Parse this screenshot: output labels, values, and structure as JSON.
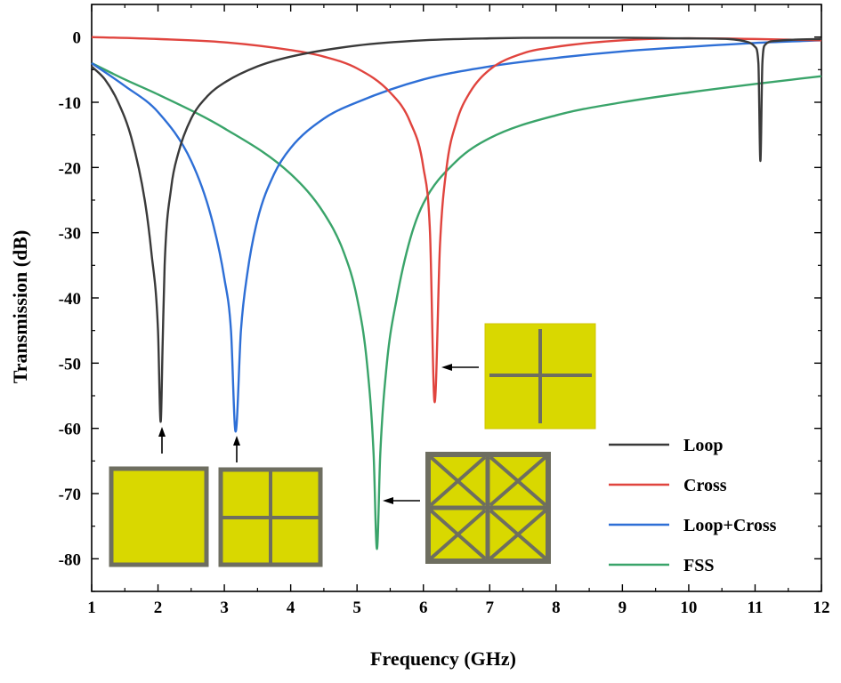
{
  "chart_data": {
    "type": "line",
    "title": "",
    "xlabel": "Frequency (GHz)",
    "ylabel": "Transmission (dB)",
    "xlim": [
      1,
      12
    ],
    "ylim": [
      -85,
      5
    ],
    "xticks": [
      "1",
      "2",
      "3",
      "4",
      "5",
      "6",
      "7",
      "8",
      "9",
      "10",
      "11",
      "12"
    ],
    "yticks": [
      "0",
      "-10",
      "-20",
      "-30",
      "-40",
      "-50",
      "-60",
      "-70",
      "-80"
    ],
    "grid": false,
    "legend_position": "bottom-right",
    "series": [
      {
        "name": "Loop",
        "color": "#3a3a3a",
        "x": [
          1.0,
          1.2,
          1.4,
          1.6,
          1.8,
          1.9,
          2.0,
          2.04,
          2.07,
          2.1,
          2.2,
          2.3,
          2.5,
          2.75,
          3.0,
          3.5,
          4.0,
          5.0,
          6.0,
          7.0,
          8.0,
          9.0,
          10.0,
          10.6,
          10.9,
          11.0,
          11.05,
          11.08,
          11.11,
          11.15,
          11.3,
          11.6,
          12.0
        ],
        "values": [
          -4.5,
          -6.5,
          -10.0,
          -15.5,
          -25.0,
          -33.0,
          -45.0,
          -59.0,
          -47.0,
          -35.0,
          -23.0,
          -18.0,
          -12.5,
          -9.0,
          -7.0,
          -4.5,
          -3.0,
          -1.3,
          -0.5,
          -0.2,
          -0.1,
          -0.1,
          -0.2,
          -0.3,
          -0.8,
          -1.5,
          -4.0,
          -19.0,
          -4.0,
          -1.2,
          -0.6,
          -0.4,
          -0.3
        ]
      },
      {
        "name": "Cross",
        "color": "#e0443e",
        "x": [
          1.0,
          2.0,
          3.0,
          4.0,
          4.5,
          5.0,
          5.5,
          5.8,
          6.0,
          6.1,
          6.17,
          6.25,
          6.35,
          6.5,
          6.7,
          7.0,
          7.5,
          8.0,
          9.0,
          10.0,
          11.0,
          12.0
        ],
        "values": [
          0.0,
          -0.3,
          -0.8,
          -2.0,
          -3.0,
          -4.8,
          -8.5,
          -13.0,
          -20.0,
          -30.0,
          -56.0,
          -32.0,
          -20.0,
          -13.0,
          -8.5,
          -5.0,
          -2.5,
          -1.5,
          -0.5,
          -0.2,
          -0.3,
          -0.5
        ]
      },
      {
        "name": "Loop+Cross",
        "color": "#2e6fd6",
        "x": [
          1.0,
          1.5,
          2.0,
          2.5,
          2.8,
          3.0,
          3.1,
          3.17,
          3.25,
          3.35,
          3.5,
          3.75,
          4.0,
          4.5,
          5.0,
          6.0,
          7.0,
          8.0,
          9.0,
          10.0,
          11.0,
          12.0
        ],
        "values": [
          -4.0,
          -7.5,
          -11.5,
          -19.0,
          -27.5,
          -37.0,
          -45.0,
          -60.5,
          -45.0,
          -36.0,
          -28.0,
          -21.0,
          -17.0,
          -12.5,
          -10.0,
          -6.5,
          -4.5,
          -3.2,
          -2.2,
          -1.5,
          -0.9,
          -0.5
        ]
      },
      {
        "name": "FSS",
        "color": "#3aa46a",
        "x": [
          1.0,
          1.5,
          2.0,
          3.0,
          4.0,
          4.5,
          4.8,
          5.0,
          5.15,
          5.25,
          5.3,
          5.35,
          5.45,
          5.6,
          5.8,
          6.0,
          6.5,
          7.0,
          8.0,
          9.0,
          10.0,
          11.0,
          12.0
        ],
        "values": [
          -4.0,
          -6.5,
          -8.8,
          -14.0,
          -21.0,
          -27.0,
          -33.0,
          -40.0,
          -50.0,
          -64.0,
          -78.5,
          -64.0,
          -50.0,
          -40.0,
          -31.0,
          -25.5,
          -19.0,
          -15.5,
          -12.0,
          -10.0,
          -8.5,
          -7.2,
          -6.0
        ]
      }
    ],
    "annotations": [
      {
        "target": "Loop",
        "inset": "square loop unit cell",
        "arrow_tip": [
          2.05,
          -60.0
        ]
      },
      {
        "target": "Loop+Cross",
        "inset": "loop with cross unit cell",
        "arrow_tip": [
          3.17,
          -60.0
        ]
      },
      {
        "target": "FSS",
        "inset": "loop with cross and diagonals unit cell",
        "arrow_tip": [
          5.33,
          -71.0
        ]
      },
      {
        "target": "Cross",
        "inset": "cross unit cell",
        "arrow_tip": [
          6.2,
          -51.0
        ]
      }
    ],
    "inset_colors": {
      "fill": "#d9d800",
      "border": "#6e6e60"
    }
  }
}
